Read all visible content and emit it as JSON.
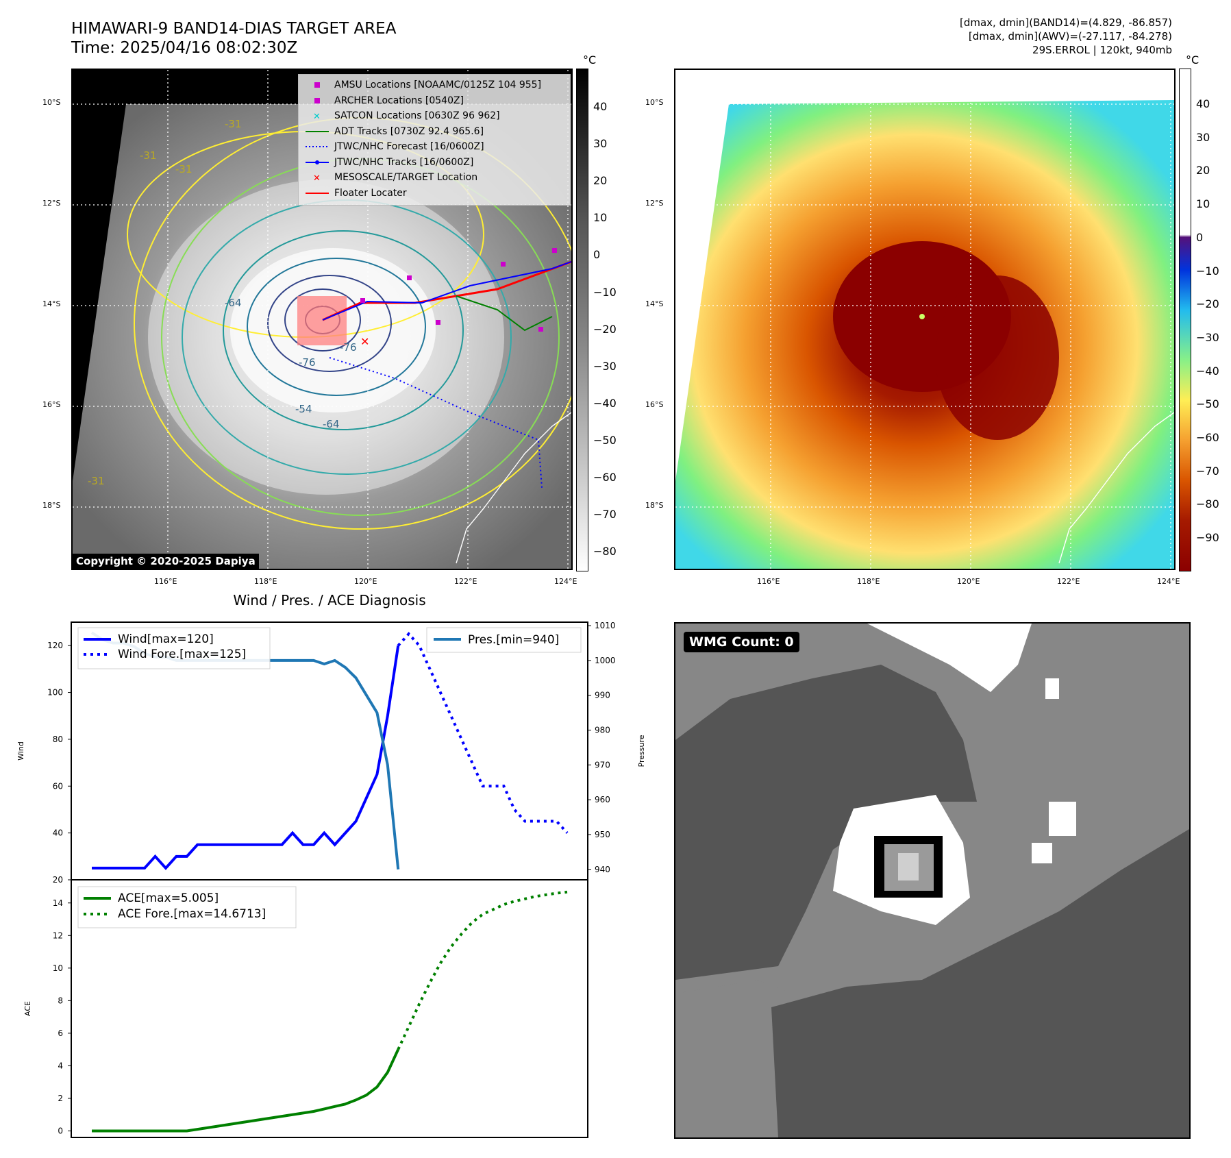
{
  "header": {
    "title_line1": "HIMAWARI-9 BAND14-DIAS TARGET AREA",
    "title_line2": "Time: 2025/04/16 08:02:30Z",
    "info_line1": "[dmax, dmin](BAND14)=(4.829, -86.857)",
    "info_line2": "[dmax, dmin](AWV)=(-27.117, -84.278)",
    "info_line3": "29S.ERROL | 120kt, 940mb"
  },
  "map_axes": {
    "lat_labels": [
      "10°S",
      "12°S",
      "14°S",
      "16°S",
      "18°S"
    ],
    "lon_labels": [
      "116°E",
      "118°E",
      "120°E",
      "122°E",
      "124°E"
    ]
  },
  "ir_panel": {
    "colorbar_unit": "°C",
    "colorbar_ticks": [
      "40",
      "30",
      "20",
      "10",
      "0",
      "−10",
      "−20",
      "−30",
      "−40",
      "−50",
      "−60",
      "−70",
      "−80"
    ],
    "contour_labels": [
      "-31",
      "-31",
      "-31",
      "-64",
      "-76",
      "-76",
      "-54",
      "-64",
      "-31"
    ],
    "copyright": "Copyright © 2020-2025 Dapiya",
    "legend": [
      {
        "label": "AMSU Locations [NOAAMC/0125Z 104 955]",
        "color": "#cc00cc",
        "symbol": "square"
      },
      {
        "label": "ARCHER Locations [0540Z]",
        "color": "#cc00cc",
        "symbol": "square"
      },
      {
        "label": "SATCON Locations [0630Z 96 962]",
        "color": "#00cccc",
        "symbol": "x"
      },
      {
        "label": "ADT Tracks [0730Z 92.4 965.6]",
        "color": "#008000",
        "symbol": "line"
      },
      {
        "label": "JTWC/NHC Forecast [16/0600Z]",
        "color": "#0000ff",
        "symbol": "dotted"
      },
      {
        "label": "JTWC/NHC Tracks [16/0600Z]",
        "color": "#0000ff",
        "symbol": "line-dot"
      },
      {
        "label": "MESOSCALE/TARGET Location",
        "color": "#ff0000",
        "symbol": "x"
      },
      {
        "label": "Floater Locater",
        "color": "#ff0000",
        "symbol": "line"
      }
    ]
  },
  "awv_panel": {
    "colorbar_unit": "°C",
    "colorbar_ticks": [
      "40",
      "30",
      "20",
      "10",
      "0",
      "−10",
      "−20",
      "−30",
      "−40",
      "−50",
      "−60",
      "−70",
      "−80",
      "−90"
    ]
  },
  "wmg_panel": {
    "label": "WMG Count: 0"
  },
  "chart_data": [
    {
      "type": "line",
      "title": "Wind / Pres. / ACE Diagnosis",
      "ylabel": "Wind",
      "ylabel_right": "Pressure",
      "ylim": [
        20,
        130
      ],
      "ylim_right": [
        937,
        1011
      ],
      "yticks": [
        20,
        40,
        60,
        80,
        100,
        120
      ],
      "yticks_right": [
        940,
        950,
        960,
        970,
        980,
        990,
        1000,
        1010
      ],
      "x_count": 46,
      "series": [
        {
          "name": "Wind[max=120]",
          "axis": "left",
          "style": "solid",
          "color": "#0000ff",
          "x": [
            0,
            1,
            2,
            3,
            4,
            5,
            6,
            7,
            8,
            9,
            10,
            11,
            12,
            13,
            14,
            15,
            16,
            17,
            18,
            19,
            20,
            21,
            22,
            23,
            24,
            25,
            26,
            27,
            28,
            29
          ],
          "values": [
            25,
            25,
            25,
            25,
            25,
            25,
            30,
            25,
            30,
            30,
            35,
            35,
            35,
            35,
            35,
            35,
            35,
            35,
            35,
            40,
            35,
            35,
            40,
            35,
            40,
            45,
            55,
            65,
            90,
            120
          ]
        },
        {
          "name": "Wind Fore.[max=125]",
          "axis": "left",
          "style": "dotted",
          "color": "#0000ff",
          "x": [
            29,
            30,
            31,
            32,
            33,
            34,
            35,
            36,
            37,
            38,
            39,
            40,
            41,
            42,
            43,
            44,
            45
          ],
          "values": [
            120,
            125,
            120,
            110,
            100,
            90,
            80,
            70,
            60,
            60,
            60,
            50,
            45,
            45,
            45,
            45,
            40
          ]
        },
        {
          "name": "Pres.[min=940]",
          "axis": "right",
          "style": "solid",
          "color": "#1f77b4",
          "x": [
            0,
            1,
            2,
            3,
            4,
            5,
            6,
            7,
            8,
            9,
            10,
            11,
            12,
            13,
            14,
            15,
            16,
            17,
            18,
            19,
            20,
            21,
            22,
            23,
            24,
            25,
            26,
            27,
            28,
            29
          ],
          "values": [
            1008,
            1006,
            1005,
            1005,
            1004,
            1002,
            1001,
            1001,
            1000,
            1000,
            1000,
            1000,
            1000,
            1000,
            1000,
            1000,
            1000,
            1000,
            1000,
            1000,
            1000,
            1000,
            999,
            1000,
            998,
            995,
            990,
            985,
            970,
            940
          ]
        }
      ]
    },
    {
      "type": "line",
      "ylabel": "ACE",
      "ylim": [
        -0.4,
        15
      ],
      "yticks": [
        0,
        2,
        4,
        6,
        8,
        10,
        12,
        14
      ],
      "x_count": 46,
      "series": [
        {
          "name": "ACE[max=5.005]",
          "style": "solid",
          "color": "#008000",
          "x": [
            0,
            1,
            2,
            3,
            4,
            5,
            6,
            7,
            8,
            9,
            10,
            11,
            12,
            13,
            14,
            15,
            16,
            17,
            18,
            19,
            20,
            21,
            22,
            23,
            24,
            25,
            26,
            27,
            28,
            29
          ],
          "values": [
            0,
            0,
            0,
            0,
            0,
            0,
            0,
            0,
            0,
            0,
            0.1,
            0.2,
            0.3,
            0.4,
            0.5,
            0.6,
            0.7,
            0.8,
            0.9,
            1.0,
            1.1,
            1.2,
            1.35,
            1.5,
            1.65,
            1.9,
            2.2,
            2.7,
            3.6,
            5.005
          ]
        },
        {
          "name": "ACE Fore.[max=14.6713]",
          "style": "dotted",
          "color": "#008000",
          "x": [
            29,
            30,
            31,
            32,
            33,
            34,
            35,
            36,
            37,
            38,
            39,
            40,
            41,
            42,
            43,
            44,
            45
          ],
          "values": [
            5.005,
            6.4,
            7.8,
            9.1,
            10.3,
            11.3,
            12.1,
            12.8,
            13.3,
            13.6,
            13.9,
            14.1,
            14.25,
            14.4,
            14.5,
            14.6,
            14.6713
          ]
        }
      ]
    }
  ]
}
